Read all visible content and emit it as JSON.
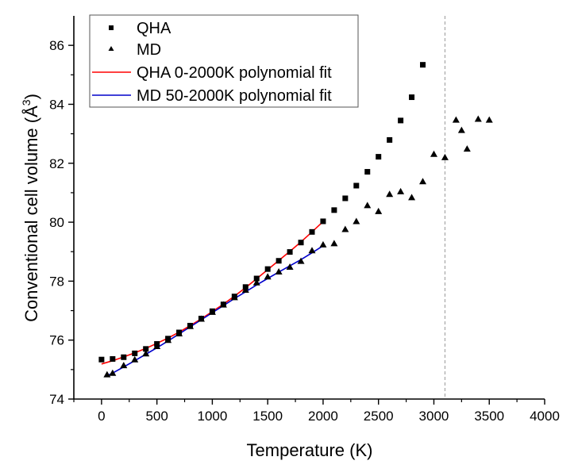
{
  "chart_data": {
    "type": "scatter",
    "title": "",
    "xlabel": "Temperature (K)",
    "ylabel": "Conventional cell volume (Å³)",
    "ylabel_main": "Conventional cell volume (Å",
    "ylabel_sup": "3",
    "ylabel_close": ")",
    "xlim": [
      -250,
      4000
    ],
    "ylim": [
      74,
      87
    ],
    "xticks": [
      0,
      500,
      1000,
      1500,
      2000,
      2500,
      3000,
      3500,
      4000
    ],
    "xtick_labels": [
      "0",
      "500",
      "1000",
      "1500",
      "2000",
      "2500",
      "3000",
      "3500",
      "4000"
    ],
    "xminor": [
      -250,
      250,
      750,
      1250,
      1750,
      2250,
      2750,
      3250,
      3750
    ],
    "yticks": [
      74,
      76,
      78,
      80,
      82,
      84,
      86
    ],
    "ytick_labels": [
      "74",
      "76",
      "78",
      "80",
      "82",
      "84",
      "86"
    ],
    "yminor": [
      75,
      77,
      79,
      81,
      83,
      85
    ],
    "grid": false,
    "legend_position": "top-left",
    "reference_line": {
      "orientation": "vertical",
      "x": 3100,
      "style": "dashed",
      "color": "#999999"
    },
    "series": [
      {
        "name": "QHA",
        "kind": "scatter",
        "marker": "square",
        "color": "#000000",
        "x": [
          0,
          100,
          200,
          300,
          400,
          500,
          600,
          700,
          800,
          900,
          1000,
          1100,
          1200,
          1300,
          1400,
          1500,
          1600,
          1700,
          1800,
          1900,
          2000,
          2100,
          2200,
          2300,
          2400,
          2500,
          2600,
          2700,
          2800,
          2900
        ],
        "y": [
          75.34,
          75.36,
          75.42,
          75.55,
          75.7,
          75.87,
          76.05,
          76.26,
          76.49,
          76.73,
          76.98,
          77.21,
          77.48,
          77.8,
          78.09,
          78.41,
          78.69,
          78.99,
          79.31,
          79.67,
          80.03,
          80.41,
          80.81,
          81.24,
          81.71,
          82.22,
          82.79,
          83.45,
          84.24,
          85.34
        ]
      },
      {
        "name": "MD",
        "kind": "scatter",
        "marker": "triangle",
        "color": "#000000",
        "x": [
          50,
          100,
          200,
          300,
          400,
          500,
          600,
          700,
          800,
          900,
          1000,
          1100,
          1200,
          1300,
          1400,
          1500,
          1600,
          1700,
          1800,
          1900,
          2000,
          2100,
          2200,
          2300,
          2400,
          2500,
          2600,
          2700,
          2800,
          2900,
          3000,
          3100,
          3200,
          3250,
          3300,
          3400,
          3500
        ],
        "y": [
          74.83,
          74.88,
          75.14,
          75.34,
          75.54,
          75.79,
          76.0,
          76.22,
          76.47,
          76.72,
          76.95,
          77.2,
          77.45,
          77.7,
          77.95,
          78.15,
          78.32,
          78.48,
          78.68,
          79.04,
          79.24,
          79.28,
          79.76,
          80.03,
          80.57,
          80.37,
          80.95,
          81.04,
          80.84,
          81.38,
          82.31,
          82.2,
          83.47,
          83.12,
          82.49,
          83.5,
          83.47
        ]
      },
      {
        "name": "QHA 0-2000K polynomial fit",
        "kind": "line",
        "color": "#ff0000",
        "x": [
          0,
          100,
          200,
          300,
          400,
          500,
          600,
          700,
          800,
          900,
          1000,
          1100,
          1200,
          1300,
          1400,
          1500,
          1600,
          1700,
          1800,
          1900,
          2000
        ],
        "y": [
          75.19,
          75.3,
          75.43,
          75.57,
          75.72,
          75.89,
          76.07,
          76.27,
          76.49,
          76.72,
          76.97,
          77.22,
          77.49,
          77.78,
          78.08,
          78.39,
          78.7,
          79.01,
          79.33,
          79.67,
          80.02
        ]
      },
      {
        "name": "MD 50-2000K polynomial fit",
        "kind": "line",
        "color": "#0000cc",
        "x": [
          50,
          100,
          200,
          300,
          400,
          500,
          600,
          700,
          800,
          900,
          1000,
          1100,
          1200,
          1300,
          1400,
          1500,
          1600,
          1700,
          1800,
          1900,
          2000
        ],
        "y": [
          74.8,
          74.88,
          75.09,
          75.3,
          75.52,
          75.74,
          75.97,
          76.21,
          76.45,
          76.69,
          76.93,
          77.17,
          77.41,
          77.64,
          77.87,
          78.09,
          78.31,
          78.52,
          78.73,
          78.96,
          79.2
        ]
      }
    ],
    "legend": [
      {
        "label": "QHA",
        "symbol": "square",
        "color": "#000000"
      },
      {
        "label": "MD",
        "symbol": "triangle",
        "color": "#000000"
      },
      {
        "label": "QHA 0-2000K polynomial fit",
        "symbol": "line",
        "color": "#ff0000"
      },
      {
        "label": "MD 50-2000K polynomial fit",
        "symbol": "line",
        "color": "#0000cc"
      }
    ]
  }
}
